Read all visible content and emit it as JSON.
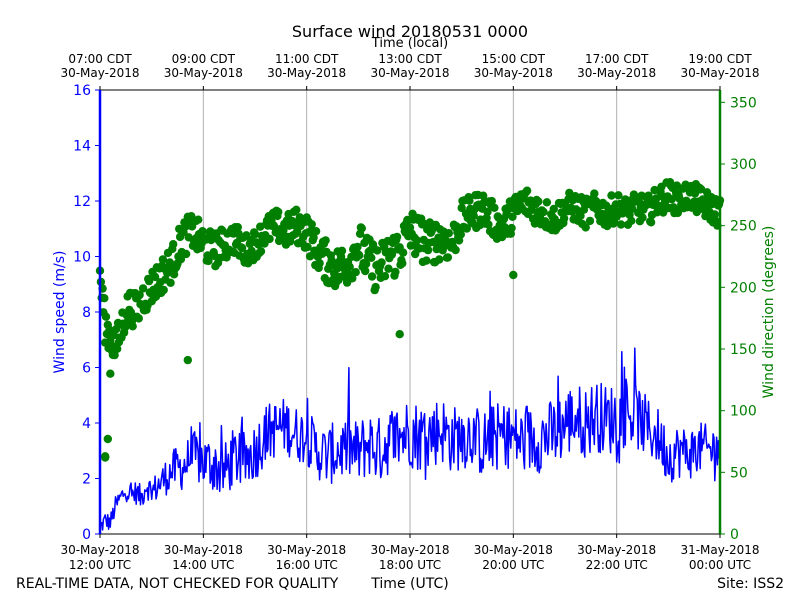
{
  "chart_data": {
    "type": "line+scatter",
    "title": "Surface wind 20180531 0000",
    "top_axis_label": "Time (local)",
    "top_ticks": [
      {
        "time": "07:00 CDT",
        "date": "30-May-2018"
      },
      {
        "time": "09:00 CDT",
        "date": "30-May-2018"
      },
      {
        "time": "11:00 CDT",
        "date": "30-May-2018"
      },
      {
        "time": "13:00 CDT",
        "date": "30-May-2018"
      },
      {
        "time": "15:00 CDT",
        "date": "30-May-2018"
      },
      {
        "time": "17:00 CDT",
        "date": "30-May-2018"
      },
      {
        "time": "19:00 CDT",
        "date": "30-May-2018"
      }
    ],
    "bottom_ticks": [
      {
        "date": "30-May-2018",
        "time": "12:00 UTC"
      },
      {
        "date": "30-May-2018",
        "time": "14:00 UTC"
      },
      {
        "date": "30-May-2018",
        "time": "16:00 UTC"
      },
      {
        "date": "30-May-2018",
        "time": "18:00 UTC"
      },
      {
        "date": "30-May-2018",
        "time": "20:00 UTC"
      },
      {
        "date": "30-May-2018",
        "time": "22:00 UTC"
      },
      {
        "date": "31-May-2018",
        "time": "00:00 UTC"
      }
    ],
    "xlabel": "Time (UTC)",
    "xlim_hours_utc": [
      12,
      24
    ],
    "left_axis": {
      "label": "Wind speed (m/s)",
      "ylim": [
        0,
        16
      ],
      "ticks": [
        "0",
        "2",
        "4",
        "6",
        "8",
        "10",
        "12",
        "14",
        "16"
      ]
    },
    "right_axis": {
      "label": "Wind direction (degrees)",
      "ylim": [
        0,
        360
      ],
      "ticks": [
        "0",
        "50",
        "100",
        "150",
        "200",
        "250",
        "300",
        "350"
      ]
    },
    "grid": "vertical",
    "series": [
      {
        "name": "Wind speed",
        "axis": "left",
        "kind": "line",
        "color": "#0000ff",
        "points": [
          [
            12.0,
            0.2
          ],
          [
            12.1,
            0.5
          ],
          [
            12.2,
            0.4
          ],
          [
            12.3,
            1.0
          ],
          [
            12.4,
            1.3
          ],
          [
            12.5,
            1.6
          ],
          [
            12.6,
            1.4
          ],
          [
            12.7,
            1.5
          ],
          [
            12.8,
            1.3
          ],
          [
            12.9,
            1.8
          ],
          [
            13.0,
            1.5
          ],
          [
            13.2,
            1.9
          ],
          [
            13.4,
            2.3
          ],
          [
            13.6,
            2.4
          ],
          [
            13.8,
            2.8
          ],
          [
            14.0,
            2.6
          ],
          [
            14.2,
            2.5
          ],
          [
            14.4,
            2.2
          ],
          [
            14.6,
            2.8
          ],
          [
            14.8,
            2.6
          ],
          [
            15.0,
            3.0
          ],
          [
            15.2,
            3.6
          ],
          [
            15.4,
            3.8
          ],
          [
            15.6,
            3.9
          ],
          [
            15.8,
            3.6
          ],
          [
            16.0,
            3.5
          ],
          [
            16.2,
            3.0
          ],
          [
            16.4,
            2.8
          ],
          [
            16.6,
            3.0
          ],
          [
            16.8,
            3.1
          ],
          [
            17.0,
            2.9
          ],
          [
            17.2,
            3.3
          ],
          [
            17.4,
            3.0
          ],
          [
            17.6,
            3.4
          ],
          [
            17.8,
            3.5
          ],
          [
            18.0,
            3.7
          ],
          [
            18.2,
            3.5
          ],
          [
            18.4,
            3.6
          ],
          [
            18.6,
            3.8
          ],
          [
            18.8,
            3.4
          ],
          [
            19.0,
            3.5
          ],
          [
            19.2,
            3.6
          ],
          [
            19.4,
            3.2
          ],
          [
            19.6,
            3.5
          ],
          [
            19.8,
            3.6
          ],
          [
            20.0,
            3.5
          ],
          [
            20.2,
            3.3
          ],
          [
            20.4,
            3.4
          ],
          [
            20.6,
            3.5
          ],
          [
            20.8,
            3.6
          ],
          [
            21.0,
            4.0
          ],
          [
            21.2,
            4.2
          ],
          [
            21.4,
            4.0
          ],
          [
            21.6,
            4.3
          ],
          [
            21.8,
            4.1
          ],
          [
            22.0,
            4.2
          ],
          [
            22.2,
            4.4
          ],
          [
            22.4,
            4.2
          ],
          [
            22.6,
            3.8
          ],
          [
            22.8,
            3.5
          ],
          [
            23.0,
            2.8
          ],
          [
            23.2,
            3.0
          ],
          [
            23.4,
            2.9
          ],
          [
            23.6,
            3.1
          ],
          [
            23.8,
            3.0
          ],
          [
            24.0,
            3.2
          ]
        ],
        "spread": [
          [
            12.0,
            0.3
          ],
          [
            12.5,
            0.4
          ],
          [
            13.0,
            0.5
          ],
          [
            13.5,
            0.8
          ],
          [
            14.0,
            1.0
          ],
          [
            15.0,
            1.1
          ],
          [
            16.0,
            1.0
          ],
          [
            17.0,
            1.2
          ],
          [
            18.0,
            1.3
          ],
          [
            19.0,
            1.2
          ],
          [
            20.0,
            1.2
          ],
          [
            21.0,
            1.3
          ],
          [
            22.0,
            1.3
          ],
          [
            23.0,
            1.0
          ],
          [
            24.0,
            0.9
          ]
        ]
      },
      {
        "name": "Wind direction",
        "axis": "right",
        "kind": "scatter",
        "color": "#007f00",
        "points": [
          [
            12.0,
            210
          ],
          [
            12.1,
            170
          ],
          [
            12.2,
            160
          ],
          [
            12.3,
            150
          ],
          [
            12.4,
            165
          ],
          [
            12.5,
            180
          ],
          [
            12.6,
            185
          ],
          [
            12.7,
            180
          ],
          [
            12.8,
            190
          ],
          [
            12.9,
            195
          ],
          [
            13.0,
            200
          ],
          [
            13.2,
            210
          ],
          [
            13.4,
            220
          ],
          [
            13.6,
            240
          ],
          [
            13.8,
            245
          ],
          [
            14.0,
            235
          ],
          [
            14.2,
            230
          ],
          [
            14.4,
            235
          ],
          [
            14.6,
            240
          ],
          [
            14.8,
            230
          ],
          [
            15.0,
            235
          ],
          [
            15.2,
            245
          ],
          [
            15.4,
            250
          ],
          [
            15.6,
            245
          ],
          [
            15.8,
            250
          ],
          [
            16.0,
            245
          ],
          [
            16.2,
            230
          ],
          [
            16.4,
            220
          ],
          [
            16.6,
            215
          ],
          [
            16.8,
            220
          ],
          [
            17.0,
            235
          ],
          [
            17.2,
            220
          ],
          [
            17.4,
            215
          ],
          [
            17.6,
            225
          ],
          [
            17.8,
            230
          ],
          [
            18.0,
            245
          ],
          [
            18.2,
            240
          ],
          [
            18.4,
            235
          ],
          [
            18.6,
            240
          ],
          [
            18.8,
            235
          ],
          [
            19.0,
            255
          ],
          [
            19.2,
            260
          ],
          [
            19.4,
            265
          ],
          [
            19.6,
            255
          ],
          [
            19.8,
            250
          ],
          [
            20.0,
            260
          ],
          [
            20.2,
            270
          ],
          [
            20.4,
            265
          ],
          [
            20.6,
            260
          ],
          [
            20.8,
            255
          ],
          [
            21.0,
            265
          ],
          [
            21.2,
            265
          ],
          [
            21.4,
            260
          ],
          [
            21.6,
            265
          ],
          [
            21.8,
            260
          ],
          [
            22.0,
            265
          ],
          [
            22.2,
            260
          ],
          [
            22.4,
            265
          ],
          [
            22.6,
            262
          ],
          [
            22.8,
            270
          ],
          [
            23.0,
            275
          ],
          [
            23.2,
            270
          ],
          [
            23.4,
            275
          ],
          [
            23.6,
            270
          ],
          [
            23.8,
            265
          ],
          [
            24.0,
            260
          ]
        ],
        "spread": [
          [
            12.0,
            15
          ],
          [
            12.5,
            15
          ],
          [
            13.0,
            15
          ],
          [
            14.0,
            15
          ],
          [
            15.0,
            12
          ],
          [
            16.0,
            15
          ],
          [
            17.0,
            20
          ],
          [
            18.0,
            20
          ],
          [
            19.0,
            15
          ],
          [
            20.0,
            14
          ],
          [
            21.0,
            12
          ],
          [
            22.0,
            12
          ],
          [
            23.0,
            12
          ],
          [
            24.0,
            12
          ]
        ],
        "outliers": [
          [
            12.1,
            62
          ],
          [
            12.1,
            63
          ],
          [
            12.15,
            77
          ],
          [
            12.2,
            130
          ],
          [
            13.7,
            141
          ],
          [
            17.8,
            162
          ],
          [
            20.0,
            210
          ]
        ]
      }
    ],
    "footer_left": "REAL-TIME DATA, NOT CHECKED FOR QUALITY",
    "footer_site": "Site: ISS2"
  }
}
